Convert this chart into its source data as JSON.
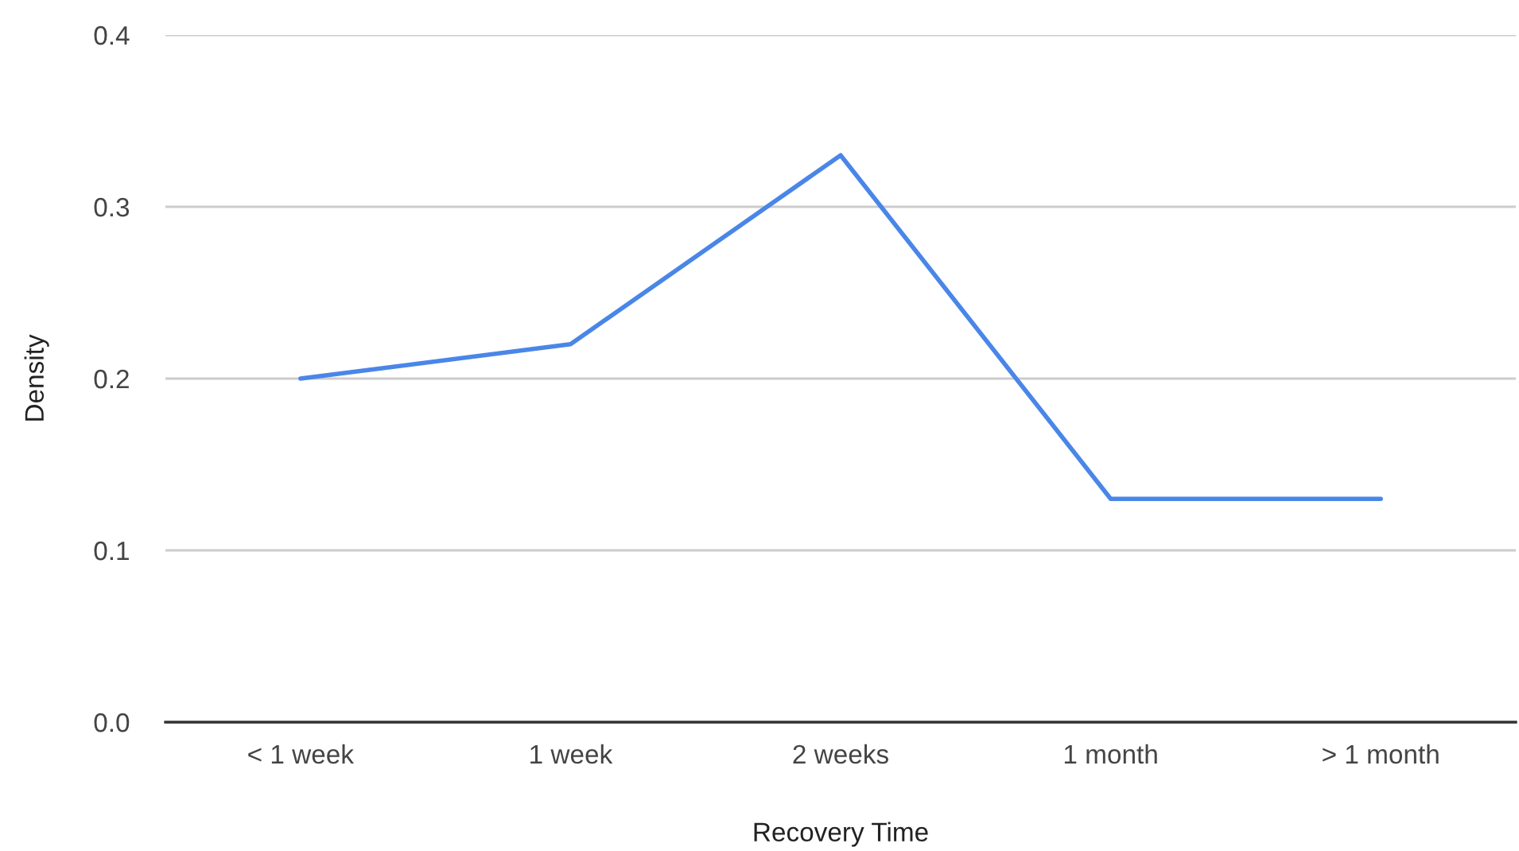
{
  "chart_data": {
    "type": "line",
    "xlabel": "Recovery Time",
    "ylabel": "Density",
    "categories": [
      "< 1 week",
      "1 week",
      "2 weeks",
      "1 month",
      "> 1 month"
    ],
    "series": [
      {
        "color": "#4a86e8",
        "values": [
          0.2,
          0.22,
          0.33,
          0.13,
          0.13
        ]
      }
    ],
    "ylim": [
      0,
      0.4
    ],
    "yticks": [
      {
        "value": 0,
        "label": "0.0"
      },
      0.1,
      0.2,
      0.3,
      0.4
    ],
    "grid": "y",
    "marker": "none",
    "line_style": "solid"
  }
}
